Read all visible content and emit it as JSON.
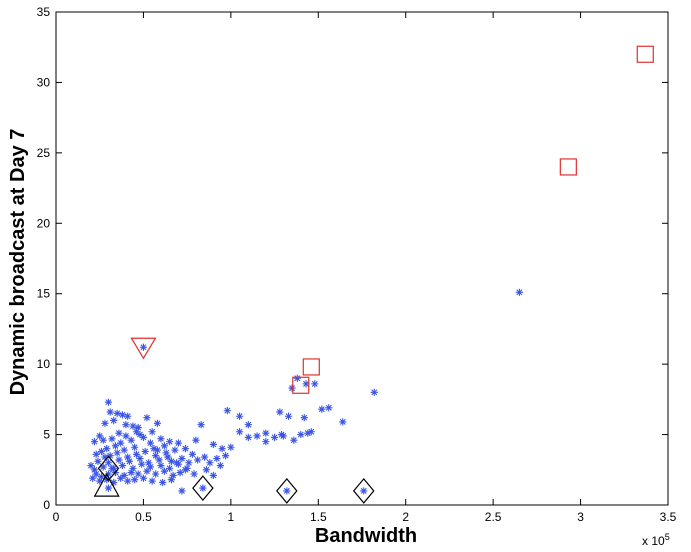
{
  "chart_data": {
    "type": "scatter",
    "title": "",
    "xlabel": "Bandwidth",
    "ylabel": "Dynamic broadcast at Day 7",
    "x_multiplier_label": "x 10",
    "x_multiplier_exponent": "5",
    "xlim": [
      0,
      3.5
    ],
    "ylim": [
      0,
      35
    ],
    "x_ticks": [
      "0",
      "0.5",
      "1",
      "1.5",
      "2",
      "2.5",
      "3",
      "3.5"
    ],
    "y_ticks": [
      "0",
      "5",
      "10",
      "15",
      "20",
      "25",
      "30",
      "35"
    ],
    "grid": false,
    "colors": {
      "points": "#3b55e6",
      "red_markers": "#e03030",
      "black_markers": "#000000"
    },
    "series": [
      {
        "marker": "asterisk",
        "points": [
          [
            0.3,
            7.3
          ],
          [
            0.31,
            6.6
          ],
          [
            0.35,
            6.5
          ],
          [
            0.38,
            6.4
          ],
          [
            0.41,
            6.3
          ],
          [
            0.33,
            6.0
          ],
          [
            0.28,
            5.8
          ],
          [
            0.4,
            5.7
          ],
          [
            0.44,
            5.6
          ],
          [
            0.47,
            5.5
          ],
          [
            0.52,
            6.2
          ],
          [
            0.58,
            5.8
          ],
          [
            0.55,
            5.2
          ],
          [
            0.48,
            5.0
          ],
          [
            0.36,
            5.1
          ],
          [
            0.25,
            4.9
          ],
          [
            0.27,
            4.6
          ],
          [
            0.22,
            4.5
          ],
          [
            0.32,
            4.7
          ],
          [
            0.37,
            4.4
          ],
          [
            0.43,
            4.6
          ],
          [
            0.5,
            4.8
          ],
          [
            0.6,
            4.7
          ],
          [
            0.65,
            4.5
          ],
          [
            0.7,
            4.4
          ],
          [
            0.62,
            4.2
          ],
          [
            0.56,
            4.0
          ],
          [
            0.45,
            4.1
          ],
          [
            0.39,
            3.9
          ],
          [
            0.29,
            4.0
          ],
          [
            0.23,
            3.6
          ],
          [
            0.26,
            3.8
          ],
          [
            0.31,
            3.5
          ],
          [
            0.35,
            3.7
          ],
          [
            0.41,
            3.4
          ],
          [
            0.46,
            3.6
          ],
          [
            0.51,
            3.8
          ],
          [
            0.57,
            3.5
          ],
          [
            0.63,
            3.7
          ],
          [
            0.68,
            3.9
          ],
          [
            0.74,
            4.0
          ],
          [
            0.78,
            3.6
          ],
          [
            0.72,
            3.3
          ],
          [
            0.66,
            3.1
          ],
          [
            0.59,
            3.2
          ],
          [
            0.53,
            3.0
          ],
          [
            0.48,
            3.3
          ],
          [
            0.42,
            3.1
          ],
          [
            0.36,
            3.2
          ],
          [
            0.3,
            3.0
          ],
          [
            0.24,
            3.1
          ],
          [
            0.2,
            2.8
          ],
          [
            0.22,
            2.5
          ],
          [
            0.27,
            2.7
          ],
          [
            0.33,
            2.6
          ],
          [
            0.38,
            2.8
          ],
          [
            0.44,
            2.6
          ],
          [
            0.49,
            2.9
          ],
          [
            0.54,
            2.7
          ],
          [
            0.6,
            2.8
          ],
          [
            0.65,
            2.6
          ],
          [
            0.7,
            2.9
          ],
          [
            0.76,
            3.0
          ],
          [
            0.81,
            3.2
          ],
          [
            0.85,
            3.4
          ],
          [
            0.88,
            3.0
          ],
          [
            0.92,
            3.3
          ],
          [
            0.95,
            4.0
          ],
          [
            1.0,
            4.1
          ],
          [
            0.98,
            6.7
          ],
          [
            1.05,
            6.3
          ],
          [
            1.1,
            5.7
          ],
          [
            1.05,
            5.2
          ],
          [
            1.15,
            4.9
          ],
          [
            1.2,
            5.1
          ],
          [
            1.25,
            4.8
          ],
          [
            1.3,
            4.9
          ],
          [
            0.9,
            4.3
          ],
          [
            0.83,
            5.7
          ],
          [
            0.8,
            4.6
          ],
          [
            0.75,
            2.6
          ],
          [
            0.71,
            2.3
          ],
          [
            0.67,
            2.1
          ],
          [
            0.62,
            2.4
          ],
          [
            0.57,
            2.2
          ],
          [
            0.52,
            2.4
          ],
          [
            0.47,
            2.2
          ],
          [
            0.43,
            2.3
          ],
          [
            0.39,
            2.1
          ],
          [
            0.34,
            2.3
          ],
          [
            0.3,
            2.2
          ],
          [
            0.26,
            2.0
          ],
          [
            0.23,
            2.2
          ],
          [
            0.21,
            1.9
          ],
          [
            0.25,
            1.7
          ],
          [
            0.29,
            1.8
          ],
          [
            0.33,
            1.6
          ],
          [
            0.37,
            1.9
          ],
          [
            0.41,
            1.7
          ],
          [
            0.45,
            1.8
          ],
          [
            0.5,
            1.9
          ],
          [
            0.55,
            1.7
          ],
          [
            0.61,
            1.6
          ],
          [
            0.66,
            1.8
          ],
          [
            0.72,
            1.0
          ],
          [
            1.29,
            5.0
          ],
          [
            1.33,
            6.3
          ],
          [
            1.36,
            4.6
          ],
          [
            1.4,
            5.0
          ],
          [
            1.35,
            8.3
          ],
          [
            1.42,
            6.2
          ],
          [
            1.44,
            5.1
          ],
          [
            1.46,
            5.2
          ],
          [
            1.48,
            8.6
          ],
          [
            1.52,
            6.8
          ],
          [
            1.56,
            6.9
          ],
          [
            1.64,
            5.9
          ],
          [
            1.82,
            8.0
          ],
          [
            1.38,
            9.0
          ],
          [
            1.43,
            8.6
          ],
          [
            1.28,
            6.6
          ],
          [
            1.2,
            4.5
          ],
          [
            1.1,
            4.8
          ],
          [
            2.65,
            15.1
          ],
          [
            0.5,
            11.2
          ],
          [
            0.84,
            1.2
          ],
          [
            1.32,
            1.0
          ],
          [
            1.76,
            1.0
          ],
          [
            0.3,
            1.2
          ],
          [
            0.32,
            2.6
          ],
          [
            0.28,
            3.4
          ],
          [
            0.34,
            4.2
          ],
          [
            0.4,
            4.9
          ],
          [
            0.46,
            5.2
          ],
          [
            0.54,
            4.4
          ],
          [
            0.58,
            3.9
          ],
          [
            0.64,
            3.4
          ],
          [
            0.69,
            3.0
          ],
          [
            0.74,
            2.5
          ],
          [
            0.79,
            2.2
          ],
          [
            0.86,
            2.5
          ],
          [
            0.9,
            2.1
          ],
          [
            0.94,
            2.8
          ],
          [
            0.97,
            3.5
          ]
        ]
      }
    ],
    "annotations": [
      {
        "shape": "square",
        "color": "#e03030",
        "x": 3.37,
        "y": 32.0
      },
      {
        "shape": "square",
        "color": "#e03030",
        "x": 2.93,
        "y": 24.0
      },
      {
        "shape": "square",
        "color": "#e03030",
        "x": 1.46,
        "y": 9.8
      },
      {
        "shape": "square",
        "color": "#e03030",
        "x": 1.4,
        "y": 8.5
      },
      {
        "shape": "triangle-down",
        "color": "#e03030",
        "x": 0.5,
        "y": 11.2
      },
      {
        "shape": "diamond",
        "color": "#000000",
        "x": 0.84,
        "y": 1.2
      },
      {
        "shape": "diamond",
        "color": "#000000",
        "x": 1.32,
        "y": 1.0
      },
      {
        "shape": "diamond",
        "color": "#000000",
        "x": 1.76,
        "y": 1.0
      },
      {
        "shape": "diamond",
        "color": "#000000",
        "x": 0.3,
        "y": 2.6
      },
      {
        "shape": "triangle-up",
        "color": "#000000",
        "x": 0.29,
        "y": 1.2
      }
    ]
  }
}
